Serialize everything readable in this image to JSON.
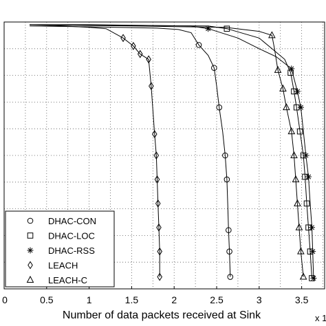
{
  "chart_data": {
    "type": "line",
    "title": "",
    "xlabel": "Number of data packets received at Sink",
    "ylabel": "",
    "x_multiplier_label": "x 1",
    "xlim": [
      0,
      3.77
    ],
    "ylim": [
      0,
      1
    ],
    "xticks": [
      0,
      0.5,
      1,
      1.5,
      2,
      2.5,
      3,
      3.5
    ],
    "xtick_labels": [
      "0",
      "0.5",
      "1",
      "1.5",
      "2",
      "2.5",
      "3",
      "3.5"
    ],
    "grid": true,
    "legend_position": "bottom-left",
    "series": [
      {
        "name": "DHAC-CON",
        "marker": "circle",
        "points": [
          [
            0.3,
            0.985
          ],
          [
            1.0,
            0.982
          ],
          [
            1.8,
            0.977
          ],
          [
            2.05,
            0.972
          ],
          [
            2.2,
            0.96
          ],
          [
            2.29,
            0.914
          ],
          [
            2.4,
            0.875
          ],
          [
            2.47,
            0.828
          ],
          [
            2.5,
            0.76
          ],
          [
            2.53,
            0.68
          ],
          [
            2.57,
            0.59
          ],
          [
            2.6,
            0.5
          ],
          [
            2.62,
            0.41
          ],
          [
            2.63,
            0.32
          ],
          [
            2.64,
            0.22
          ],
          [
            2.65,
            0.14
          ],
          [
            2.66,
            0.045
          ]
        ],
        "markers_at": [
          [
            2.29,
            0.914
          ],
          [
            2.47,
            0.828
          ],
          [
            2.53,
            0.68
          ],
          [
            2.6,
            0.5
          ],
          [
            2.62,
            0.41
          ],
          [
            2.64,
            0.22
          ],
          [
            2.65,
            0.14
          ],
          [
            2.66,
            0.045
          ]
        ]
      },
      {
        "name": "DHAC-LOC",
        "marker": "square",
        "points": [
          [
            0.3,
            0.99
          ],
          [
            1.2,
            0.988
          ],
          [
            2.4,
            0.985
          ],
          [
            2.62,
            0.975
          ],
          [
            3.0,
            0.94
          ],
          [
            3.15,
            0.9
          ],
          [
            3.3,
            0.86
          ],
          [
            3.37,
            0.81
          ],
          [
            3.41,
            0.74
          ],
          [
            3.44,
            0.68
          ],
          [
            3.48,
            0.59
          ],
          [
            3.52,
            0.5
          ],
          [
            3.54,
            0.42
          ],
          [
            3.56,
            0.32
          ],
          [
            3.58,
            0.23
          ],
          [
            3.6,
            0.14
          ],
          [
            3.62,
            0.04
          ]
        ],
        "markers_at": [
          [
            2.62,
            0.975
          ],
          [
            3.37,
            0.81
          ],
          [
            3.41,
            0.74
          ],
          [
            3.44,
            0.68
          ],
          [
            3.48,
            0.59
          ],
          [
            3.52,
            0.5
          ],
          [
            3.54,
            0.42
          ],
          [
            3.56,
            0.32
          ],
          [
            3.58,
            0.23
          ],
          [
            3.6,
            0.14
          ],
          [
            3.62,
            0.04
          ]
        ]
      },
      {
        "name": "DHAC-RSS",
        "marker": "star",
        "points": [
          [
            0.3,
            0.99
          ],
          [
            1.0,
            0.99
          ],
          [
            2.2,
            0.985
          ],
          [
            2.4,
            0.975
          ],
          [
            2.75,
            0.94
          ],
          [
            3.0,
            0.9
          ],
          [
            3.2,
            0.87
          ],
          [
            3.38,
            0.825
          ],
          [
            3.45,
            0.74
          ],
          [
            3.49,
            0.68
          ],
          [
            3.52,
            0.59
          ],
          [
            3.55,
            0.5
          ],
          [
            3.58,
            0.42
          ],
          [
            3.6,
            0.32
          ],
          [
            3.62,
            0.23
          ],
          [
            3.63,
            0.14
          ],
          [
            3.64,
            0.04
          ]
        ],
        "markers_at": [
          [
            2.4,
            0.975
          ],
          [
            3.38,
            0.825
          ],
          [
            3.45,
            0.74
          ],
          [
            3.49,
            0.68
          ],
          [
            3.55,
            0.5
          ],
          [
            3.58,
            0.42
          ],
          [
            3.62,
            0.23
          ],
          [
            3.63,
            0.14
          ],
          [
            3.64,
            0.04
          ]
        ]
      },
      {
        "name": "LEACH",
        "marker": "diamond",
        "points": [
          [
            0.3,
            0.99
          ],
          [
            0.7,
            0.985
          ],
          [
            1.0,
            0.98
          ],
          [
            1.2,
            0.975
          ],
          [
            1.4,
            0.94
          ],
          [
            1.52,
            0.91
          ],
          [
            1.6,
            0.88
          ],
          [
            1.7,
            0.86
          ],
          [
            1.73,
            0.76
          ],
          [
            1.75,
            0.67
          ],
          [
            1.77,
            0.58
          ],
          [
            1.79,
            0.5
          ],
          [
            1.8,
            0.41
          ],
          [
            1.81,
            0.32
          ],
          [
            1.82,
            0.23
          ],
          [
            1.83,
            0.14
          ],
          [
            1.83,
            0.045
          ]
        ],
        "markers_at": [
          [
            1.4,
            0.94
          ],
          [
            1.52,
            0.91
          ],
          [
            1.6,
            0.88
          ],
          [
            1.7,
            0.86
          ],
          [
            1.73,
            0.76
          ],
          [
            1.77,
            0.58
          ],
          [
            1.79,
            0.5
          ],
          [
            1.8,
            0.41
          ],
          [
            1.81,
            0.32
          ],
          [
            1.82,
            0.23
          ],
          [
            1.83,
            0.14
          ],
          [
            1.83,
            0.045
          ]
        ]
      },
      {
        "name": "LEACH-C",
        "marker": "triangle",
        "points": [
          [
            0.3,
            0.99
          ],
          [
            1.5,
            0.985
          ],
          [
            2.6,
            0.98
          ],
          [
            3.0,
            0.965
          ],
          [
            3.15,
            0.95
          ],
          [
            3.18,
            0.9
          ],
          [
            3.22,
            0.82
          ],
          [
            3.28,
            0.75
          ],
          [
            3.32,
            0.68
          ],
          [
            3.38,
            0.59
          ],
          [
            3.41,
            0.5
          ],
          [
            3.43,
            0.41
          ],
          [
            3.45,
            0.32
          ],
          [
            3.47,
            0.23
          ],
          [
            3.49,
            0.14
          ],
          [
            3.52,
            0.045
          ]
        ],
        "markers_at": [
          [
            3.15,
            0.95
          ],
          [
            3.22,
            0.82
          ],
          [
            3.28,
            0.75
          ],
          [
            3.32,
            0.68
          ],
          [
            3.38,
            0.59
          ],
          [
            3.41,
            0.5
          ],
          [
            3.43,
            0.41
          ],
          [
            3.45,
            0.32
          ],
          [
            3.47,
            0.23
          ],
          [
            3.49,
            0.14
          ],
          [
            3.52,
            0.045
          ]
        ]
      }
    ]
  }
}
